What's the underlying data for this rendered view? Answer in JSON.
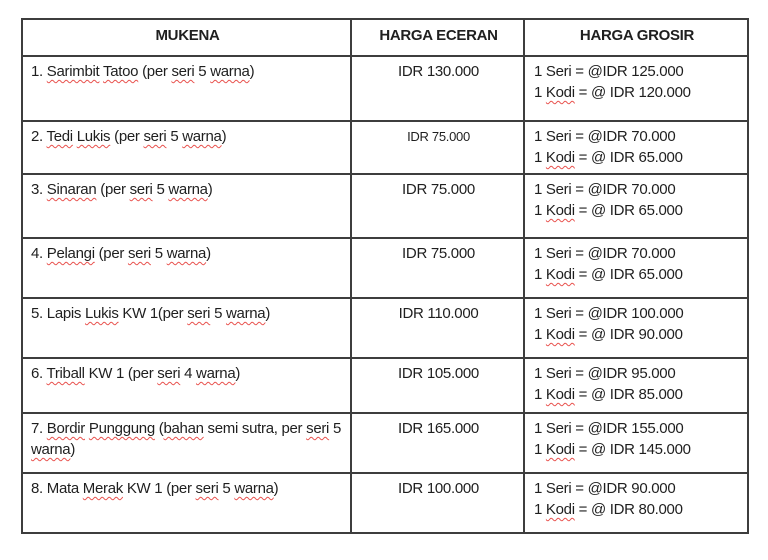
{
  "colors": {
    "page_background": "#ffffff",
    "table_border": "#3d3d3d",
    "text": "#1f1f1f",
    "misspelling_underline": "#e8514d"
  },
  "table": {
    "headers": [
      "MUKENA",
      "HARGA ECERAN",
      "HARGA GROSIR"
    ],
    "rows": [
      {
        "name_segments": [
          {
            "text": "1. "
          },
          {
            "text": "Sarimbit",
            "misspelled": true
          },
          {
            "text": " "
          },
          {
            "text": "Tatoo",
            "misspelled": true
          },
          {
            "text": " (per "
          },
          {
            "text": "seri",
            "misspelled": true
          },
          {
            "text": " 5 "
          },
          {
            "text": "warna",
            "misspelled": true
          },
          {
            "text": ")"
          }
        ],
        "harga_eceran": "IDR 130.000",
        "harga_grosir_lines": [
          [
            {
              "text": "1 Seri = @IDR 125.000"
            }
          ],
          [
            {
              "text": "1 "
            },
            {
              "text": "Kodi",
              "misspelled": true
            },
            {
              "text": " = @ IDR 120.000"
            }
          ]
        ]
      },
      {
        "name_segments": [
          {
            "text": "2. "
          },
          {
            "text": "Tedi",
            "misspelled": true
          },
          {
            "text": " "
          },
          {
            "text": "Lukis",
            "misspelled": true
          },
          {
            "text": " (per "
          },
          {
            "text": "seri",
            "misspelled": true
          },
          {
            "text": " 5 "
          },
          {
            "text": "warna",
            "misspelled": true
          },
          {
            "text": ")"
          }
        ],
        "harga_eceran": "IDR 75.000",
        "harga_grosir_lines": [
          [
            {
              "text": "1 Seri = @IDR 70.000"
            }
          ],
          [
            {
              "text": "1 "
            },
            {
              "text": "Kodi",
              "misspelled": true
            },
            {
              "text": " = @ IDR 65.000"
            }
          ]
        ]
      },
      {
        "name_segments": [
          {
            "text": "3. "
          },
          {
            "text": "Sinaran",
            "misspelled": true
          },
          {
            "text": " (per "
          },
          {
            "text": "seri",
            "misspelled": true
          },
          {
            "text": " 5 "
          },
          {
            "text": "warna",
            "misspelled": true
          },
          {
            "text": ")"
          }
        ],
        "harga_eceran": "IDR 75.000",
        "harga_grosir_lines": [
          [
            {
              "text": "1 Seri = @IDR 70.000"
            }
          ],
          [
            {
              "text": "1 "
            },
            {
              "text": "Kodi",
              "misspelled": true
            },
            {
              "text": " = @ IDR 65.000"
            }
          ]
        ]
      },
      {
        "name_segments": [
          {
            "text": "4. "
          },
          {
            "text": "Pelangi",
            "misspelled": true
          },
          {
            "text": " (per "
          },
          {
            "text": "seri",
            "misspelled": true
          },
          {
            "text": " 5 "
          },
          {
            "text": "warna",
            "misspelled": true
          },
          {
            "text": ")"
          }
        ],
        "harga_eceran": "IDR 75.000",
        "harga_grosir_lines": [
          [
            {
              "text": "1 Seri = @IDR 70.000"
            }
          ],
          [
            {
              "text": "1 "
            },
            {
              "text": "Kodi",
              "misspelled": true
            },
            {
              "text": " = @ IDR 65.000"
            }
          ]
        ]
      },
      {
        "name_segments": [
          {
            "text": "5. Lapis "
          },
          {
            "text": "Lukis",
            "misspelled": true
          },
          {
            "text": " KW 1(per "
          },
          {
            "text": "seri",
            "misspelled": true
          },
          {
            "text": " 5 "
          },
          {
            "text": "warna",
            "misspelled": true
          },
          {
            "text": ")"
          }
        ],
        "harga_eceran": "IDR 110.000",
        "harga_grosir_lines": [
          [
            {
              "text": "1 Seri = @IDR 100.000"
            }
          ],
          [
            {
              "text": "1 "
            },
            {
              "text": "Kodi",
              "misspelled": true
            },
            {
              "text": " = @ IDR 90.000"
            }
          ]
        ]
      },
      {
        "name_segments": [
          {
            "text": "6. "
          },
          {
            "text": "Triball",
            "misspelled": true
          },
          {
            "text": " KW 1 (per "
          },
          {
            "text": "seri",
            "misspelled": true
          },
          {
            "text": " 4 "
          },
          {
            "text": "warna",
            "misspelled": true
          },
          {
            "text": ")"
          }
        ],
        "harga_eceran": "IDR 105.000",
        "harga_grosir_lines": [
          [
            {
              "text": "1 Seri = @IDR 95.000"
            }
          ],
          [
            {
              "text": "1 "
            },
            {
              "text": "Kodi",
              "misspelled": true
            },
            {
              "text": " = @ IDR 85.000"
            }
          ]
        ]
      },
      {
        "name_segments": [
          {
            "text": "7. "
          },
          {
            "text": "Bordir",
            "misspelled": true
          },
          {
            "text": " "
          },
          {
            "text": "Punggung",
            "misspelled": true
          },
          {
            "text": " ("
          },
          {
            "text": "bahan",
            "misspelled": true
          },
          {
            "text": " semi sutra, per "
          },
          {
            "text": "seri",
            "misspelled": true
          },
          {
            "text": " 5 "
          },
          {
            "text": "warna",
            "misspelled": true
          },
          {
            "text": ")"
          }
        ],
        "harga_eceran": "IDR 165.000",
        "harga_grosir_lines": [
          [
            {
              "text": "1 Seri = @IDR 155.000"
            }
          ],
          [
            {
              "text": "1 "
            },
            {
              "text": "Kodi",
              "misspelled": true
            },
            {
              "text": " = @ IDR 145.000"
            }
          ]
        ]
      },
      {
        "name_segments": [
          {
            "text": "8. Mata "
          },
          {
            "text": "Merak",
            "misspelled": true
          },
          {
            "text": " KW 1 (per "
          },
          {
            "text": "seri",
            "misspelled": true
          },
          {
            "text": " 5 "
          },
          {
            "text": "warna",
            "misspelled": true
          },
          {
            "text": ")"
          }
        ],
        "harga_eceran": "IDR 100.000",
        "harga_grosir_lines": [
          [
            {
              "text": "1 Seri = @IDR 90.000"
            }
          ],
          [
            {
              "text": "1 "
            },
            {
              "text": "Kodi",
              "misspelled": true
            },
            {
              "text": " = @ IDR 80.000"
            }
          ]
        ]
      }
    ]
  }
}
